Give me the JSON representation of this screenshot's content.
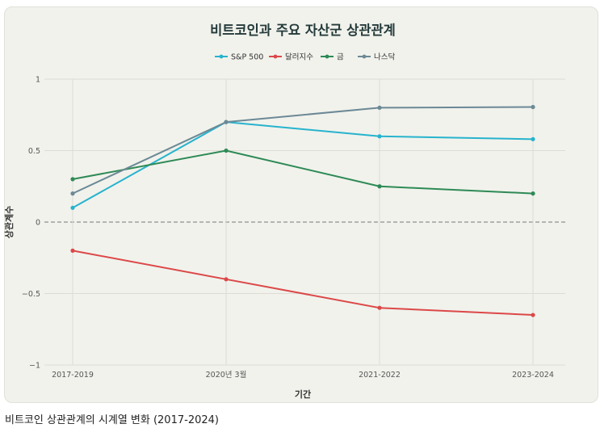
{
  "caption": "비트코인 상관관계의 시계열 변화 (2017-2024)",
  "chart_data": {
    "type": "line",
    "title": "비트코인과 주요 자산군 상관관계",
    "xlabel": "기간",
    "ylabel": "상관계수",
    "categories": [
      "2017-2019",
      "2020년 3월",
      "2021-2022",
      "2023-2024"
    ],
    "ylim": [
      -1,
      1
    ],
    "yticks": [
      1,
      0.5,
      0,
      -0.5,
      -1
    ],
    "ytick_labels": [
      "1",
      "0.5",
      "0",
      "−0.5",
      "−1"
    ],
    "grid": true,
    "legend_position": "top-center",
    "series": [
      {
        "name": "S&P 500",
        "color": "#27b3cd",
        "values": [
          0.1,
          0.7,
          0.6,
          0.58
        ]
      },
      {
        "name": "달러지수",
        "color": "#dc4848",
        "values": [
          -0.2,
          -0.4,
          -0.6,
          -0.65
        ]
      },
      {
        "name": "금",
        "color": "#2e8a56",
        "values": [
          0.3,
          0.5,
          0.25,
          0.2
        ]
      },
      {
        "name": "나스닥",
        "color": "#6c8996",
        "values": [
          0.2,
          0.7,
          0.8,
          0.805
        ]
      }
    ],
    "zero_line_color": "#8f8f8f"
  }
}
